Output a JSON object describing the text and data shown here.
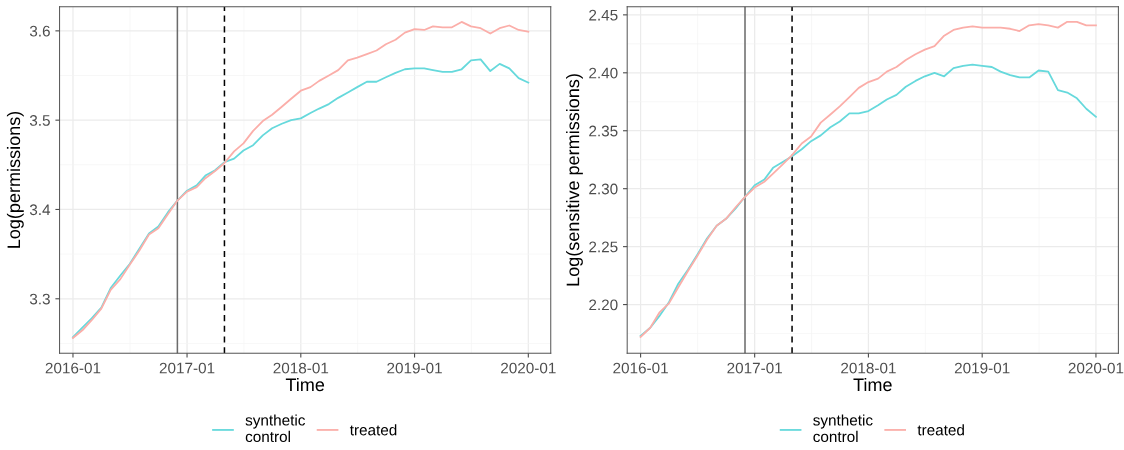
{
  "chart_data": [
    {
      "type": "line",
      "xlabel": "Time",
      "ylabel": "Log(permissions)",
      "x": [
        "2016-01",
        "2016-02",
        "2016-03",
        "2016-04",
        "2016-05",
        "2016-06",
        "2016-07",
        "2016-08",
        "2016-09",
        "2016-10",
        "2016-11",
        "2016-12",
        "2017-01",
        "2017-02",
        "2017-03",
        "2017-04",
        "2017-05",
        "2017-06",
        "2017-07",
        "2017-08",
        "2017-09",
        "2017-10",
        "2017-11",
        "2017-12",
        "2018-01",
        "2018-02",
        "2018-03",
        "2018-04",
        "2018-05",
        "2018-06",
        "2018-07",
        "2018-08",
        "2018-09",
        "2018-10",
        "2018-11",
        "2018-12",
        "2019-01",
        "2019-02",
        "2019-03",
        "2019-04",
        "2019-05",
        "2019-06",
        "2019-07",
        "2019-08",
        "2019-09",
        "2019-10",
        "2019-11",
        "2019-12",
        "2020-01"
      ],
      "series": [
        {
          "name": "synthetic\ncontrol",
          "color": "#66d9dc",
          "values": [
            3.257,
            3.268,
            3.278,
            3.29,
            3.312,
            3.326,
            3.339,
            3.356,
            3.373,
            3.381,
            3.397,
            3.41,
            3.421,
            3.427,
            3.438,
            3.444,
            3.453,
            3.457,
            3.466,
            3.472,
            3.483,
            3.491,
            3.496,
            3.5,
            3.502,
            3.508,
            3.513,
            3.518,
            3.525,
            3.531,
            3.537,
            3.543,
            3.543,
            3.548,
            3.553,
            3.557,
            3.558,
            3.558,
            3.556,
            3.554,
            3.554,
            3.557,
            3.567,
            3.568,
            3.555,
            3.563,
            3.558,
            3.547,
            3.542
          ]
        },
        {
          "name": "treated",
          "color": "#fbaea9",
          "values": [
            3.256,
            3.265,
            3.276,
            3.289,
            3.31,
            3.322,
            3.338,
            3.354,
            3.372,
            3.379,
            3.395,
            3.41,
            3.42,
            3.425,
            3.435,
            3.443,
            3.452,
            3.465,
            3.474,
            3.488,
            3.499,
            3.506,
            3.515,
            3.524,
            3.533,
            3.537,
            3.544,
            3.55,
            3.556,
            3.567,
            3.57,
            3.574,
            3.578,
            3.585,
            3.59,
            3.598,
            3.602,
            3.601,
            3.605,
            3.604,
            3.604,
            3.61,
            3.605,
            3.603,
            3.597,
            3.603,
            3.606,
            3.601,
            3.599
          ]
        }
      ],
      "xlim": [
        "2015-11-19",
        "2020-03-13"
      ],
      "xticks": [
        {
          "value": "2016-01",
          "label": "2016-01"
        },
        {
          "value": "2017-01",
          "label": "2017-01"
        },
        {
          "value": "2018-01",
          "label": "2018-01"
        },
        {
          "value": "2019-01",
          "label": "2019-01"
        },
        {
          "value": "2020-01",
          "label": "2020-01"
        }
      ],
      "ylim": [
        3.239,
        3.627
      ],
      "yticks": [
        3.3,
        3.4,
        3.5,
        3.6
      ],
      "ref_lines": [
        {
          "axis": "x",
          "value": "2016-12",
          "color": "#6b6b6b",
          "line_style": "solid"
        },
        {
          "axis": "x",
          "value": "2017-05",
          "color": "#000000",
          "line_style": "dashed"
        }
      ],
      "grid": true,
      "legend": "bottom"
    },
    {
      "type": "line",
      "xlabel": "Time",
      "ylabel": "Log(sensitive permissions)",
      "x": [
        "2016-01",
        "2016-02",
        "2016-03",
        "2016-04",
        "2016-05",
        "2016-06",
        "2016-07",
        "2016-08",
        "2016-09",
        "2016-10",
        "2016-11",
        "2016-12",
        "2017-01",
        "2017-02",
        "2017-03",
        "2017-04",
        "2017-05",
        "2017-06",
        "2017-07",
        "2017-08",
        "2017-09",
        "2017-10",
        "2017-11",
        "2017-12",
        "2018-01",
        "2018-02",
        "2018-03",
        "2018-04",
        "2018-05",
        "2018-06",
        "2018-07",
        "2018-08",
        "2018-09",
        "2018-10",
        "2018-11",
        "2018-12",
        "2019-01",
        "2019-02",
        "2019-03",
        "2019-04",
        "2019-05",
        "2019-06",
        "2019-07",
        "2019-08",
        "2019-09",
        "2019-10",
        "2019-11",
        "2019-12",
        "2020-01"
      ],
      "series": [
        {
          "name": "synthetic\ncontrol",
          "color": "#66d9dc",
          "values": [
            2.173,
            2.18,
            2.19,
            2.202,
            2.218,
            2.23,
            2.243,
            2.257,
            2.268,
            2.274,
            2.283,
            2.293,
            2.303,
            2.308,
            2.318,
            2.323,
            2.328,
            2.334,
            2.341,
            2.346,
            2.353,
            2.358,
            2.365,
            2.365,
            2.367,
            2.372,
            2.377,
            2.381,
            2.388,
            2.393,
            2.397,
            2.4,
            2.397,
            2.404,
            2.406,
            2.407,
            2.406,
            2.405,
            2.401,
            2.398,
            2.396,
            2.396,
            2.402,
            2.401,
            2.385,
            2.383,
            2.378,
            2.369,
            2.362
          ]
        },
        {
          "name": "treated",
          "color": "#fbaea9",
          "values": [
            2.172,
            2.18,
            2.193,
            2.201,
            2.215,
            2.229,
            2.242,
            2.256,
            2.268,
            2.274,
            2.284,
            2.293,
            2.301,
            2.306,
            2.313,
            2.321,
            2.329,
            2.339,
            2.345,
            2.357,
            2.364,
            2.371,
            2.379,
            2.387,
            2.392,
            2.395,
            2.401,
            2.405,
            2.411,
            2.416,
            2.42,
            2.423,
            2.432,
            2.437,
            2.439,
            2.44,
            2.439,
            2.439,
            2.439,
            2.438,
            2.436,
            2.441,
            2.442,
            2.441,
            2.439,
            2.444,
            2.444,
            2.441,
            2.441
          ]
        }
      ],
      "xlim": [
        "2015-11-19",
        "2020-03-13"
      ],
      "xticks": [
        {
          "value": "2016-01",
          "label": "2016-01"
        },
        {
          "value": "2017-01",
          "label": "2017-01"
        },
        {
          "value": "2018-01",
          "label": "2018-01"
        },
        {
          "value": "2019-01",
          "label": "2019-01"
        },
        {
          "value": "2020-01",
          "label": "2020-01"
        }
      ],
      "ylim": [
        2.158,
        2.457
      ],
      "yticks": [
        {
          "value": 2.2,
          "label": "2.20"
        },
        {
          "value": 2.25,
          "label": "2.25"
        },
        {
          "value": 2.3,
          "label": "2.30"
        },
        {
          "value": 2.35,
          "label": "2.35"
        },
        {
          "value": 2.4,
          "label": "2.40"
        },
        {
          "value": 2.45,
          "label": "2.45"
        }
      ],
      "ref_lines": [
        {
          "axis": "x",
          "value": "2016-12",
          "color": "#6b6b6b",
          "line_style": "solid"
        },
        {
          "axis": "x",
          "value": "2017-05",
          "color": "#000000",
          "line_style": "dashed"
        }
      ],
      "grid": true,
      "legend": "bottom"
    }
  ]
}
